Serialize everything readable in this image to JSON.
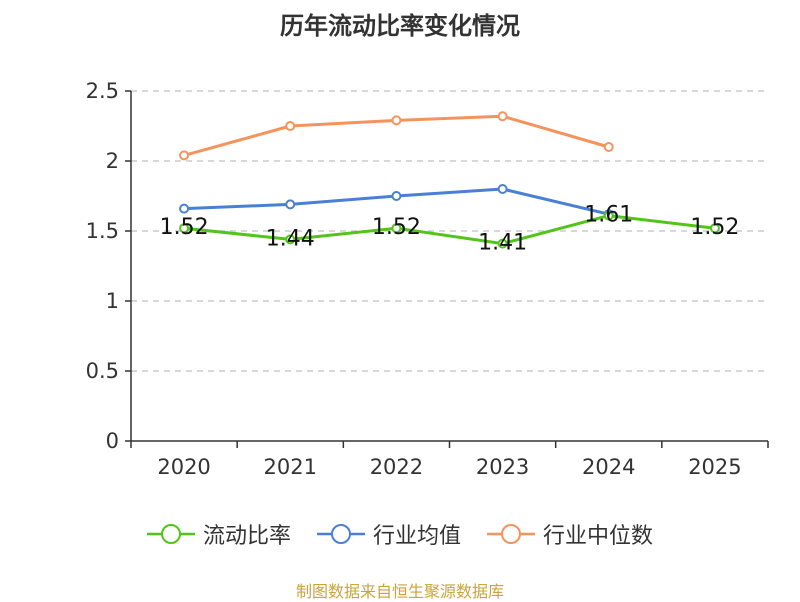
{
  "title": "历年流动比率变化情况",
  "source": "制图数据来自恒生聚源数据库",
  "chart_data": {
    "type": "line",
    "title": "历年流动比率变化情况",
    "categories": [
      "2020",
      "2021",
      "2022",
      "2023",
      "2024",
      "2025"
    ],
    "ylim": [
      0,
      2.5
    ],
    "yticks": [
      0,
      0.5,
      1,
      1.5,
      2,
      2.5
    ],
    "ytick_labels": [
      "0",
      "0.5",
      "1",
      "1.5",
      "2",
      "2.5"
    ],
    "grid": true,
    "legend_position": "bottom",
    "series": [
      {
        "name": "流动比率",
        "color": "#52c41a",
        "values": [
          1.52,
          1.44,
          1.52,
          1.41,
          1.61,
          1.52
        ],
        "labels": [
          "1.52",
          "1.44",
          "1.52",
          "1.41",
          "1.61",
          "1.52"
        ]
      },
      {
        "name": "行业均值",
        "color": "#4a7fd6",
        "values": [
          1.66,
          1.69,
          1.75,
          1.8,
          1.62,
          null
        ]
      },
      {
        "name": "行业中位数",
        "color": "#f5935c",
        "values": [
          2.04,
          2.25,
          2.29,
          2.32,
          2.1,
          null
        ]
      }
    ]
  }
}
